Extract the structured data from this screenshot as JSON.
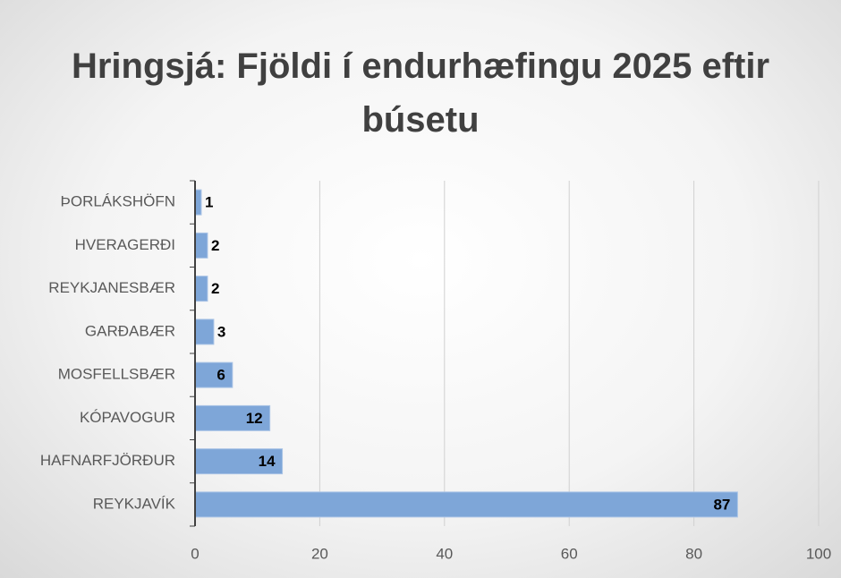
{
  "chart_data": {
    "type": "bar",
    "orientation": "horizontal",
    "title": "Hringsjá: Fjöldi í endurhæfingu 2025 eftir búsetu",
    "categories": [
      "ÞORLÁKSHÖFN",
      "HVERAGERÐI",
      "REYKJANESBÆR",
      "GARÐABÆR",
      "MOSFELLSBÆR",
      "KÓPAVOGUR",
      "HAFNARFJÖRÐUR",
      "REYKJAVÍK"
    ],
    "values": [
      1,
      2,
      2,
      3,
      6,
      12,
      14,
      87
    ],
    "color": "#7ea6d8",
    "xlim": [
      0,
      100
    ],
    "xticks": [
      0,
      20,
      40,
      60,
      80,
      100
    ],
    "grid": true
  }
}
